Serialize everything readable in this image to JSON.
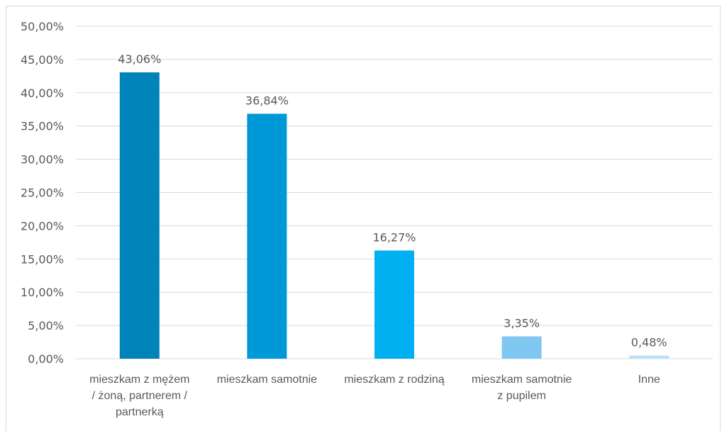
{
  "chart_data": {
    "type": "bar",
    "categories": [
      "mieszkam z mężem / żoną, partnerem / partnerką",
      "mieszkam samotnie",
      "mieszkam z rodziną",
      "mieszkam samotnie z pupilem",
      "Inne"
    ],
    "category_lines": [
      [
        "mieszkam z mężem",
        "/ żoną, partnerem /",
        "partnerką"
      ],
      [
        "mieszkam samotnie"
      ],
      [
        "mieszkam z rodziną"
      ],
      [
        "mieszkam samotnie",
        "z pupilem"
      ],
      [
        "Inne"
      ]
    ],
    "values": [
      43.06,
      36.84,
      16.27,
      3.35,
      0.48
    ],
    "data_labels": [
      "43,06%",
      "36,84%",
      "16,27%",
      "3,35%",
      "0,48%"
    ],
    "bar_colors": [
      "#0083b8",
      "#0099d8",
      "#00b0f0",
      "#7fc6f1",
      "#bde0f7"
    ],
    "ylim": [
      0,
      50
    ],
    "yticks": [
      "0,00%",
      "5,00%",
      "10,00%",
      "15,00%",
      "20,00%",
      "25,00%",
      "30,00%",
      "35,00%",
      "40,00%",
      "45,00%",
      "50,00%"
    ],
    "grid": true,
    "gridline_color": "#d9d9d9",
    "text_color": "#595959"
  }
}
